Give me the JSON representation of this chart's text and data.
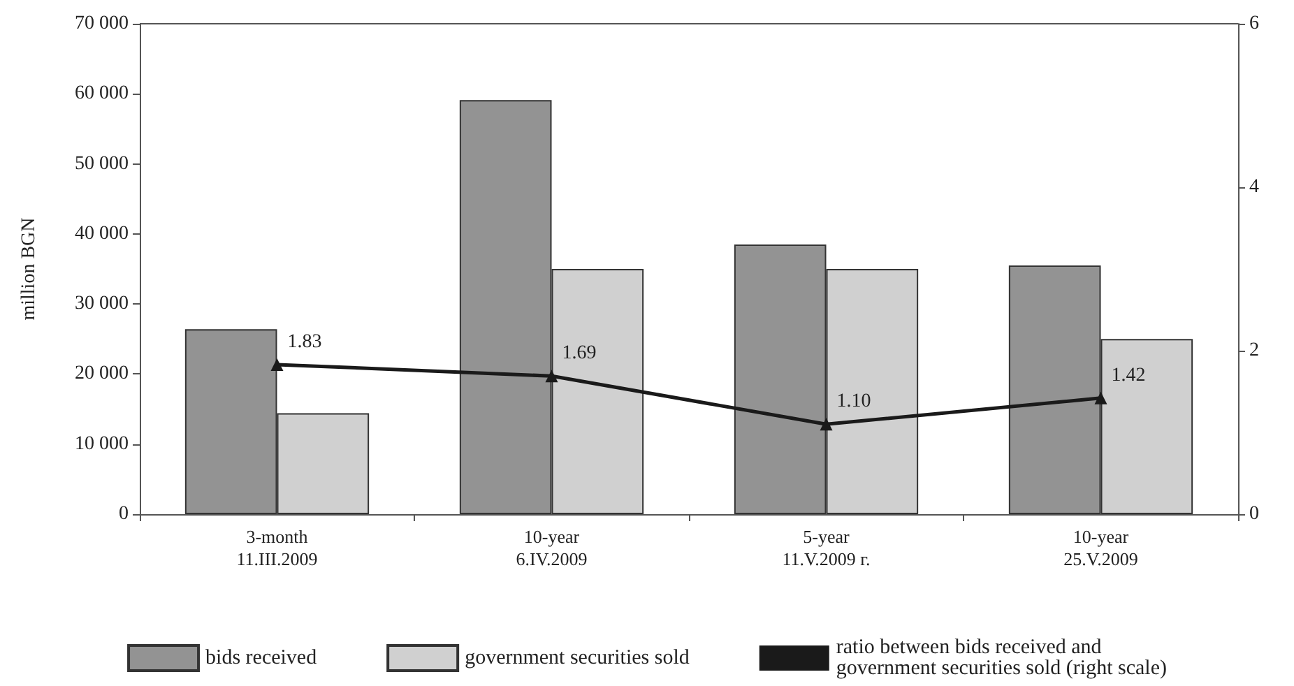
{
  "chart_data": {
    "type": "bar",
    "ylabel": "million BGN",
    "categories": [
      "3-month\n11.III.2009",
      "10-year\n6.IV.2009",
      "5-year\n11.V.2009 г.",
      "10-year\n25.V.2009"
    ],
    "series": [
      {
        "name": "bids received",
        "color": "#939393",
        "values": [
          26400,
          59100,
          38500,
          35500
        ]
      },
      {
        "name": "government securities sold",
        "color": "#d0d0d0",
        "values": [
          14400,
          35000,
          35000,
          25000
        ]
      },
      {
        "name": "ratio between bids received and government securities sold (right scale)",
        "type": "line",
        "axis": "y2",
        "color": "#1a1a1a",
        "values": [
          1.83,
          1.69,
          1.1,
          1.42
        ],
        "marker": "triangle",
        "value_labels": [
          "1.83",
          "1.69",
          "1.10",
          "1.42"
        ]
      }
    ],
    "ylim": [
      0,
      70000
    ],
    "yticks": [
      {
        "value": 0,
        "label": "0"
      },
      {
        "value": 10000,
        "label": "10 000"
      },
      {
        "value": 20000,
        "label": "20 000"
      },
      {
        "value": 30000,
        "label": "30 000"
      },
      {
        "value": 40000,
        "label": "40 000"
      },
      {
        "value": 50000,
        "label": "50 000"
      },
      {
        "value": 60000,
        "label": "60 000"
      },
      {
        "value": 70000,
        "label": "70 000"
      }
    ],
    "y2lim": [
      0,
      6
    ],
    "y2ticks": [
      0,
      2,
      4,
      6
    ],
    "grid": false,
    "legend": "bottom"
  }
}
